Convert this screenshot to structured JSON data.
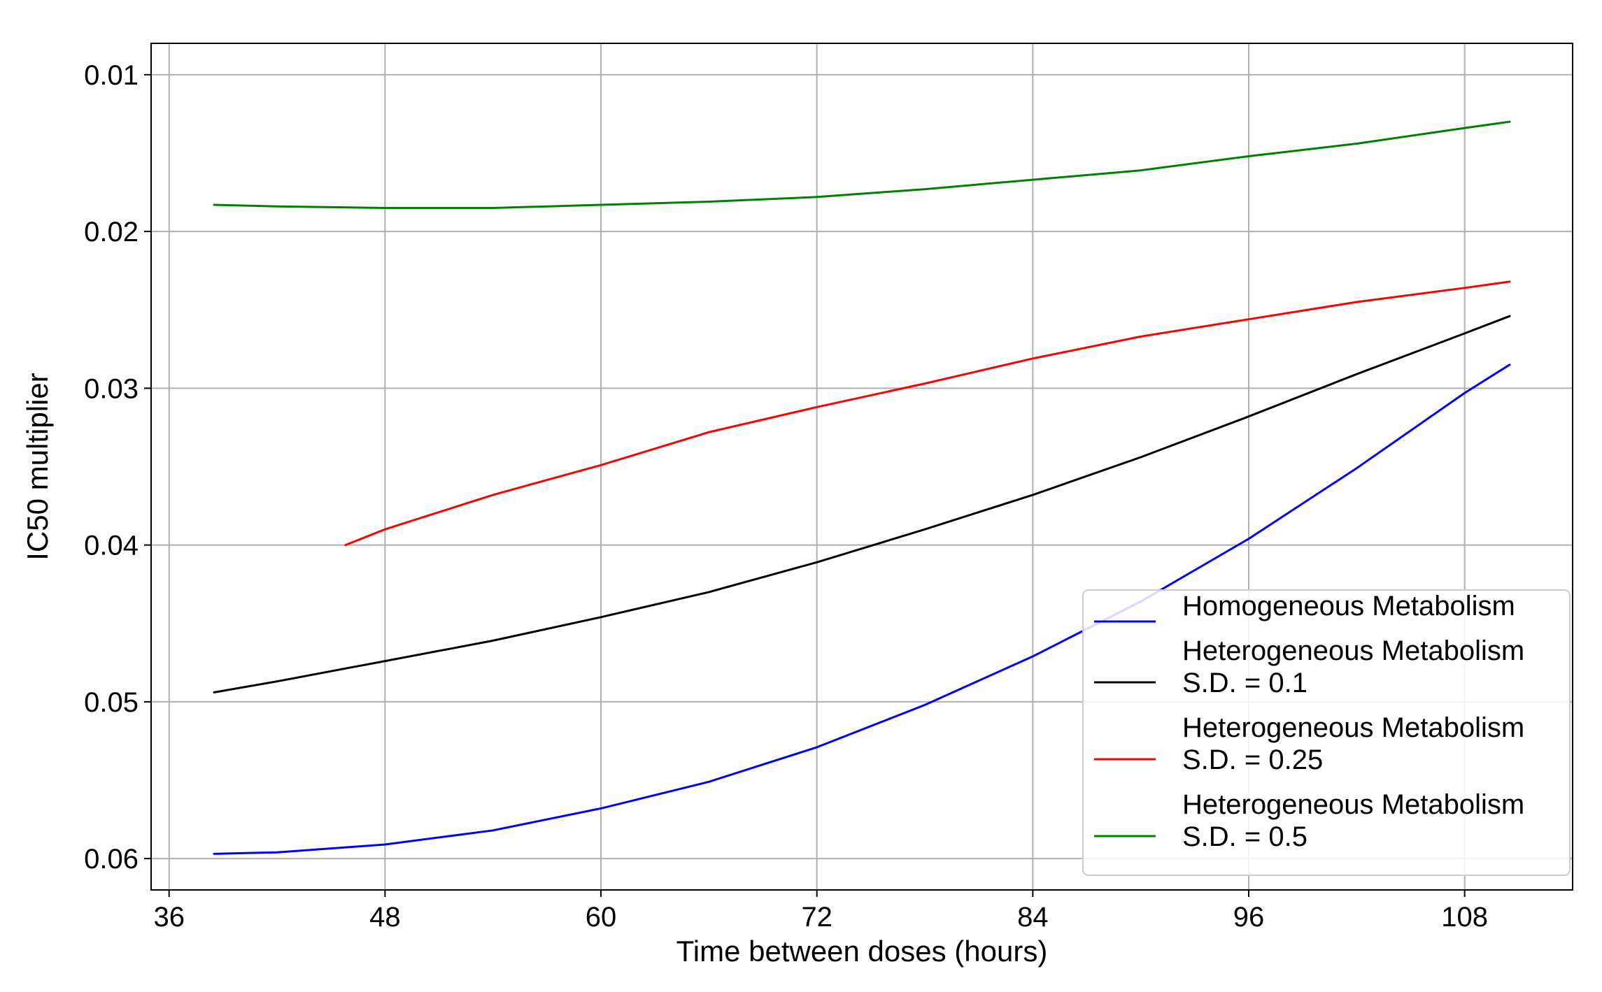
{
  "chart_data": {
    "type": "line",
    "xlabel": "Time between doses (hours)",
    "ylabel": "IC50 multiplier",
    "xlim": [
      35,
      114
    ],
    "ylim": [
      0.008,
      0.062
    ],
    "y_inverted": true,
    "grid": true,
    "legend_position": "lower-right",
    "x_ticks": [
      36,
      48,
      60,
      72,
      84,
      96,
      108
    ],
    "y_ticks": [
      0.01,
      0.02,
      0.03,
      0.04,
      0.05,
      0.06
    ],
    "x_tick_labels": [
      "36",
      "48",
      "60",
      "72",
      "84",
      "96",
      "108"
    ],
    "y_tick_labels": [
      "0.01",
      "0.02",
      "0.03",
      "0.04",
      "0.05",
      "0.06"
    ],
    "series": [
      {
        "name": "Homogeneous Metabolism",
        "color": "#0000ff",
        "x": [
          38.5,
          42,
          48,
          54,
          60,
          66,
          72,
          78,
          84,
          90,
          96,
          102,
          108,
          110.5
        ],
        "y": [
          0.0597,
          0.0596,
          0.0591,
          0.0582,
          0.0568,
          0.0551,
          0.0529,
          0.0502,
          0.0471,
          0.0436,
          0.0396,
          0.0351,
          0.0303,
          0.0285
        ]
      },
      {
        "name": "Heterogeneous Metabolism\nS.D. = 0.1",
        "color": "#000000",
        "x": [
          38.5,
          42,
          48,
          54,
          60,
          66,
          72,
          78,
          84,
          90,
          96,
          102,
          108,
          110.5
        ],
        "y": [
          0.0494,
          0.0487,
          0.0474,
          0.0461,
          0.0446,
          0.043,
          0.0411,
          0.039,
          0.0368,
          0.0344,
          0.0318,
          0.0291,
          0.0265,
          0.0254
        ]
      },
      {
        "name": "Heterogeneous Metabolism\nS.D. = 0.25",
        "color": "#ff0000",
        "x": [
          45.8,
          48,
          54,
          60,
          66,
          72,
          78,
          84,
          90,
          96,
          102,
          108,
          110.5
        ],
        "y": [
          0.04,
          0.039,
          0.0368,
          0.0349,
          0.0328,
          0.0312,
          0.0297,
          0.0281,
          0.0267,
          0.0256,
          0.0245,
          0.0236,
          0.0232
        ]
      },
      {
        "name": "Heterogeneous Metabolism\nS.D. = 0.5",
        "color": "#008000",
        "x": [
          38.5,
          42,
          48,
          54,
          60,
          66,
          72,
          78,
          84,
          90,
          96,
          102,
          108,
          110.5
        ],
        "y": [
          0.0183,
          0.0184,
          0.0185,
          0.0185,
          0.0183,
          0.0181,
          0.0178,
          0.0173,
          0.0167,
          0.0161,
          0.0152,
          0.0144,
          0.0134,
          0.013
        ]
      }
    ]
  }
}
